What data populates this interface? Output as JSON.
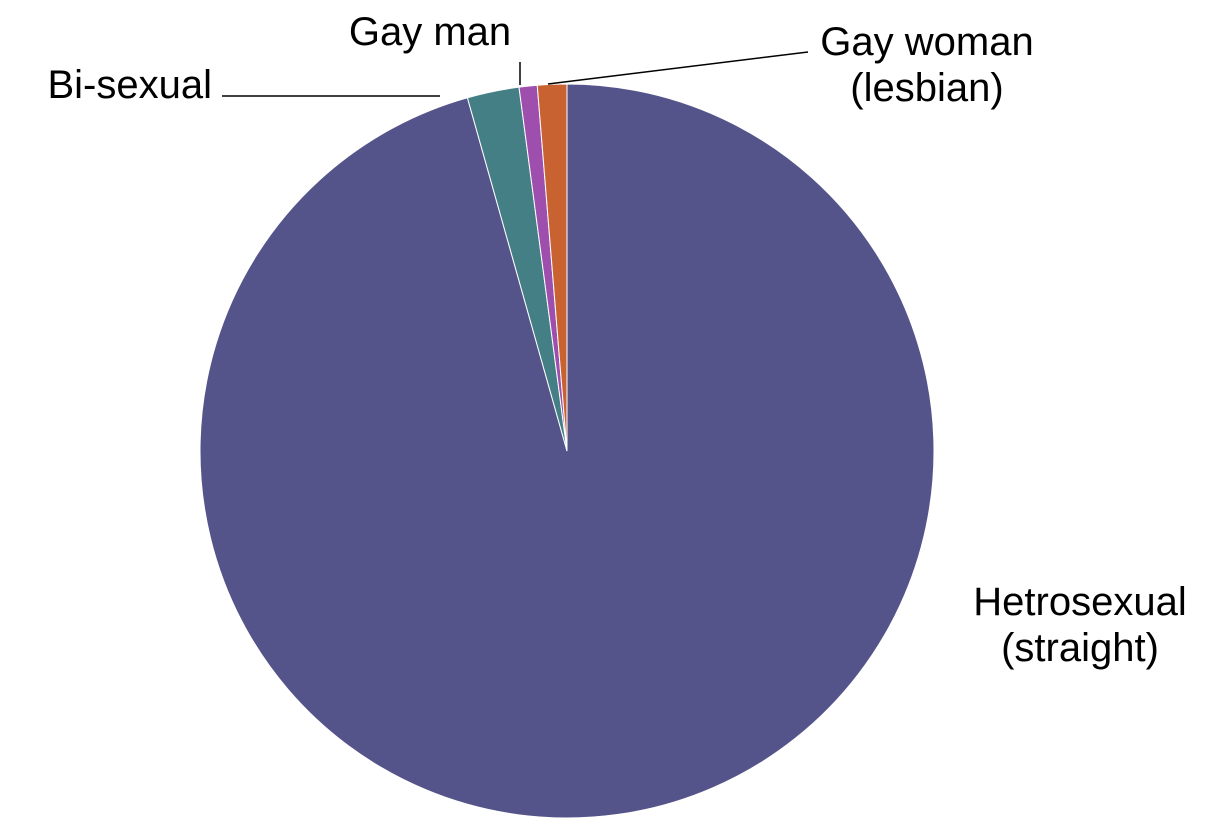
{
  "chart_data": {
    "type": "pie",
    "title": "",
    "slices": [
      {
        "label_lines": [
          "Hetrosexual",
          "(straight)"
        ],
        "value": 96.2,
        "color": "#54548A"
      },
      {
        "label_lines": [
          "Bi-sexual"
        ],
        "value": 2.3,
        "color": "#447F86"
      },
      {
        "label_lines": [
          "Gay man"
        ],
        "value": 0.8,
        "color": "#9E4EAD"
      },
      {
        "label_lines": [
          "Gay woman",
          "(lesbian)"
        ],
        "value": 1.3,
        "color": "#C86331"
      }
    ],
    "start": "12 o'clock",
    "direction": "counter-clockwise from Hetrosexual",
    "legend": "none (leader-line labels)"
  }
}
